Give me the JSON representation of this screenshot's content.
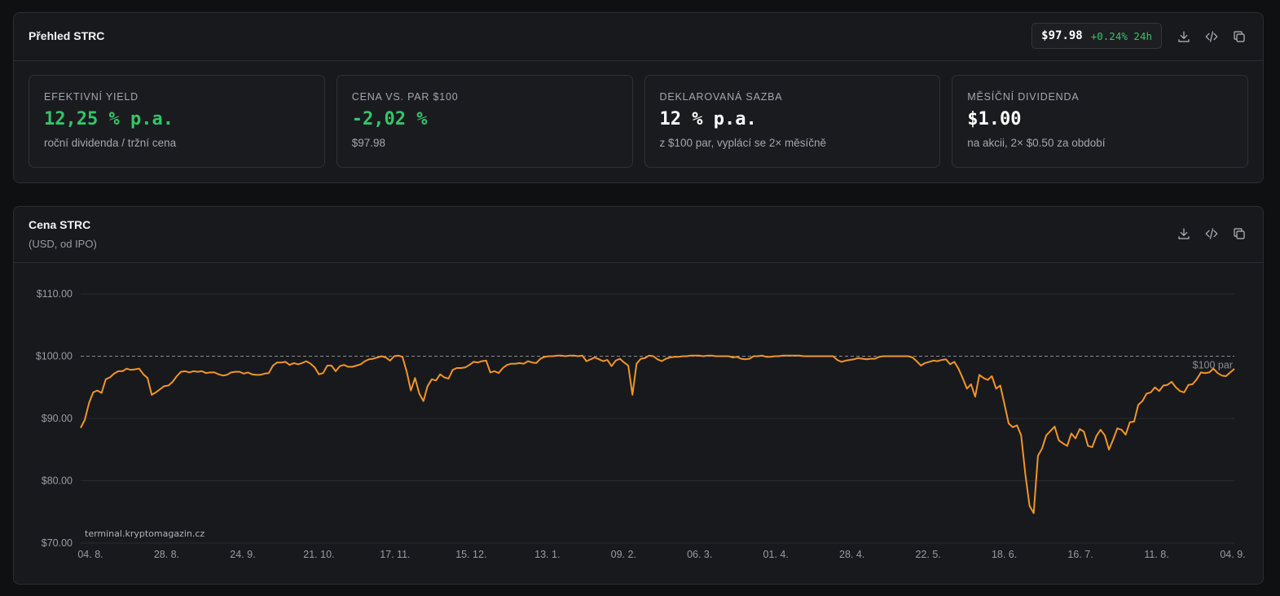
{
  "overview": {
    "title": "Přehled STRC",
    "price": "$97.98",
    "change": "+0.24% 24h",
    "cards": [
      {
        "label": "EFEKTIVNÍ YIELD",
        "value": "12,25 % p.a.",
        "desc": "roční dividenda / tržní cena",
        "value_color": "#35c46a"
      },
      {
        "label": "CENA VS. PAR $100",
        "value": "-2,02 %",
        "desc": "$97.98",
        "value_color": "#35c46a"
      },
      {
        "label": "DEKLAROVANÁ SAZBA",
        "value": "12 % p.a.",
        "desc": "z $100 par, vyplácí se 2× měsíčně",
        "value_color": "#ffffff"
      },
      {
        "label": "MĚSÍČNÍ DIVIDENDA",
        "value": "$1.00",
        "desc": "na akcii, 2× $0.50 za období",
        "value_color": "#ffffff"
      }
    ]
  },
  "chart_panel": {
    "title": "Cena STRC",
    "subtitle": "(USD, od IPO)",
    "watermark": "terminal.kryptomagazin.cz"
  },
  "icons": [
    "download-icon",
    "code-icon",
    "copy-icon"
  ],
  "colors": {
    "line": "#f0952a",
    "accent_green": "#35c46a",
    "panel": "#18191c",
    "background": "#0f1012"
  },
  "chart_data": {
    "type": "line",
    "x_ticks": [
      "04. 8.",
      "28. 8.",
      "24. 9.",
      "21. 10.",
      "17. 11.",
      "15. 12.",
      "13. 1.",
      "09. 2.",
      "06. 3.",
      "01. 4.",
      "28. 4.",
      "22. 5.",
      "18. 6.",
      "16. 7.",
      "11. 8.",
      "04. 9."
    ],
    "y_ticks": [
      "$70.00",
      "$80.00",
      "$90.00",
      "$100.00",
      "$110.00"
    ],
    "ylim": [
      70,
      110
    ],
    "grid": true,
    "reference_line": {
      "value": 100,
      "label": "$100 par",
      "style": "dashed"
    },
    "series": [
      {
        "values": [
          88.5,
          89.8,
          92.5,
          94.2,
          94.5,
          94.1,
          96.3,
          96.6,
          97.2,
          97.6,
          97.6,
          98.0,
          97.8,
          97.9,
          98.0,
          97.1,
          96.5,
          93.8,
          94.2,
          94.7,
          95.2,
          95.3,
          95.9,
          96.8,
          97.5,
          97.6,
          97.4,
          97.6,
          97.5,
          97.6,
          97.3,
          97.4,
          97.4,
          97.1,
          96.9,
          97.0,
          97.4,
          97.5,
          97.5,
          97.2,
          97.4,
          97.1,
          97.0,
          97.0,
          97.2,
          97.3,
          98.5,
          99.0,
          99.0,
          99.1,
          98.6,
          98.9,
          98.7,
          98.9,
          99.2,
          98.8,
          98.2,
          97.1,
          97.3,
          98.5,
          98.5,
          97.6,
          98.4,
          98.6,
          98.3,
          98.3,
          98.5,
          98.7,
          99.2,
          99.5,
          99.6,
          99.8,
          100.0,
          99.8,
          99.3,
          100.0,
          100.1,
          99.9,
          97.5,
          94.5,
          96.5,
          94.0,
          92.8,
          95.2,
          96.3,
          96.1,
          97.1,
          96.6,
          96.4,
          97.8,
          98.1,
          98.1,
          98.2,
          98.6,
          99.1,
          99.0,
          99.2,
          99.3,
          97.4,
          97.6,
          97.3,
          98.1,
          98.6,
          98.8,
          98.8,
          98.9,
          98.8,
          99.2,
          99.0,
          98.9,
          99.6,
          99.9,
          100.0,
          100.0,
          100.1,
          100.1,
          100.0,
          100.1,
          100.1,
          100.0,
          100.1,
          99.2,
          99.5,
          99.8,
          99.5,
          99.2,
          99.4,
          98.4,
          99.3,
          99.6,
          99.0,
          98.5,
          93.8,
          98.8,
          99.6,
          99.7,
          100.1,
          100.0,
          99.5,
          99.2,
          99.6,
          99.8,
          99.9,
          99.9,
          100.0,
          100.0,
          100.1,
          100.1,
          100.1,
          100.0,
          100.1,
          100.1,
          100.0,
          100.0,
          100.0,
          100.0,
          99.8,
          99.9,
          99.6,
          99.5,
          99.6,
          100.0,
          100.0,
          100.1,
          99.9,
          99.9,
          100.0,
          100.0,
          100.1,
          100.1,
          100.1,
          100.1,
          100.1,
          100.0,
          100.0,
          100.0,
          100.0,
          100.0,
          100.0,
          100.0,
          100.0,
          99.4,
          99.1,
          99.3,
          99.4,
          99.5,
          99.7,
          99.6,
          99.5,
          99.6,
          99.6,
          99.9,
          100.0,
          100.0,
          100.0,
          100.0,
          100.0,
          100.0,
          100.0,
          99.8,
          99.2,
          98.5,
          98.9,
          99.1,
          99.3,
          99.2,
          99.4,
          99.5,
          98.7,
          99.1,
          98.0,
          96.5,
          94.8,
          95.5,
          93.5,
          97.0,
          96.5,
          96.2,
          96.8,
          94.8,
          95.3,
          92.3,
          89.2,
          88.6,
          88.9,
          87.3,
          81.0,
          76.0,
          74.8,
          84.0,
          85.2,
          87.3,
          88.0,
          88.7,
          86.5,
          86.0,
          85.6,
          87.6,
          86.8,
          88.3,
          87.9,
          85.6,
          85.4,
          87.2,
          88.2,
          87.3,
          85.0,
          86.6,
          88.4,
          88.2,
          87.4,
          89.4,
          89.5,
          92.2,
          92.8,
          94.0,
          94.2,
          95.0,
          94.4,
          95.3,
          95.4,
          95.9,
          95.0,
          94.4,
          94.2,
          95.4,
          95.5,
          96.3,
          97.4,
          97.3,
          97.4,
          98.0,
          97.3,
          96.9,
          96.8,
          97.4,
          97.98
        ]
      }
    ]
  }
}
